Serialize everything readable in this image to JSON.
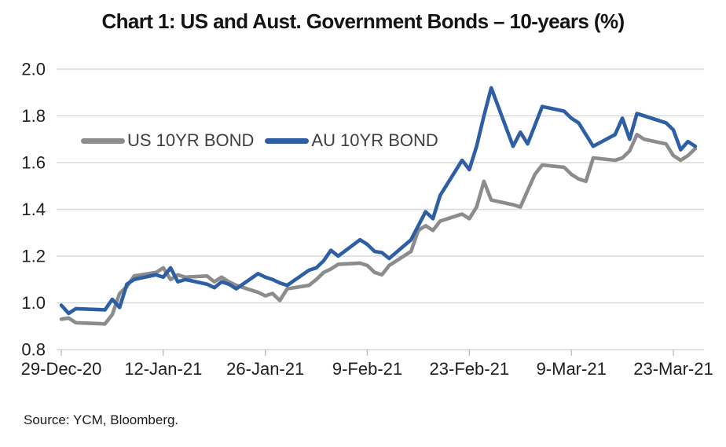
{
  "title": "Chart 1: US and Aust. Government Bonds – 10-years (%)",
  "source": "Source: YCM, Bloomberg.",
  "colors": {
    "us_line": "#8C8C8C",
    "au_line": "#2E5FA5",
    "grid": "#D9D9D9",
    "axis_tick": "#BFBFBF",
    "axis_label": "#1F1F1F",
    "legend_text": "#3F3F3F",
    "title_text": "#141414"
  },
  "legend": {
    "items": [
      {
        "label": "US 10YR BOND",
        "color": "#8C8C8C"
      },
      {
        "label": "AU 10YR BOND",
        "color": "#2E5FA5"
      }
    ]
  },
  "chart_data": {
    "type": "line",
    "title": "Chart 1: US and Aust. Government Bonds – 10-years (%)",
    "xlabel": "",
    "ylabel": "",
    "ylim": [
      0.8,
      2.0
    ],
    "yticks": [
      0.8,
      1.0,
      1.2,
      1.4,
      1.6,
      1.8,
      2.0
    ],
    "ytick_labels": [
      "0.8",
      "1.0",
      "1.2",
      "1.4",
      "1.6",
      "1.8",
      "2.0"
    ],
    "grid": true,
    "legend_position": "top-left-inside",
    "xticks": [
      {
        "date": "2020-12-29",
        "label": "29-Dec-20"
      },
      {
        "date": "2021-01-12",
        "label": "12-Jan-21"
      },
      {
        "date": "2021-01-26",
        "label": "26-Jan-21"
      },
      {
        "date": "2021-02-09",
        "label": "9-Feb-21"
      },
      {
        "date": "2021-02-23",
        "label": "23-Feb-21"
      },
      {
        "date": "2021-03-09",
        "label": "9-Mar-21"
      },
      {
        "date": "2021-03-23",
        "label": "23-Mar-21"
      }
    ],
    "x": [
      "2020-12-29",
      "2020-12-30",
      "2020-12-31",
      "2021-01-04",
      "2021-01-05",
      "2021-01-06",
      "2021-01-07",
      "2021-01-08",
      "2021-01-11",
      "2021-01-12",
      "2021-01-13",
      "2021-01-14",
      "2021-01-15",
      "2021-01-18",
      "2021-01-19",
      "2021-01-20",
      "2021-01-21",
      "2021-01-22",
      "2021-01-25",
      "2021-01-26",
      "2021-01-27",
      "2021-01-28",
      "2021-01-29",
      "2021-02-01",
      "2021-02-02",
      "2021-02-03",
      "2021-02-04",
      "2021-02-05",
      "2021-02-08",
      "2021-02-09",
      "2021-02-10",
      "2021-02-11",
      "2021-02-12",
      "2021-02-15",
      "2021-02-16",
      "2021-02-17",
      "2021-02-18",
      "2021-02-19",
      "2021-02-22",
      "2021-02-23",
      "2021-02-24",
      "2021-02-25",
      "2021-02-26",
      "2021-03-01",
      "2021-03-02",
      "2021-03-03",
      "2021-03-04",
      "2021-03-05",
      "2021-03-08",
      "2021-03-09",
      "2021-03-10",
      "2021-03-11",
      "2021-03-12",
      "2021-03-15",
      "2021-03-16",
      "2021-03-17",
      "2021-03-18",
      "2021-03-19",
      "2021-03-22",
      "2021-03-23",
      "2021-03-24",
      "2021-03-25",
      "2021-03-26"
    ],
    "series": [
      {
        "name": "US 10YR BOND",
        "color": "#8C8C8C",
        "values": [
          0.93,
          0.935,
          0.915,
          0.91,
          0.95,
          1.04,
          1.07,
          1.115,
          1.13,
          1.15,
          1.1,
          1.12,
          1.11,
          1.115,
          1.09,
          1.11,
          1.09,
          1.075,
          1.045,
          1.03,
          1.04,
          1.01,
          1.06,
          1.075,
          1.1,
          1.13,
          1.145,
          1.165,
          1.17,
          1.16,
          1.13,
          1.12,
          1.16,
          1.22,
          1.31,
          1.33,
          1.31,
          1.35,
          1.38,
          1.36,
          1.41,
          1.52,
          1.44,
          1.42,
          1.41,
          1.48,
          1.55,
          1.59,
          1.58,
          1.55,
          1.53,
          1.52,
          1.62,
          1.61,
          1.62,
          1.65,
          1.72,
          1.7,
          1.68,
          1.63,
          1.61,
          1.63,
          1.66
        ]
      },
      {
        "name": "AU 10YR BOND",
        "color": "#2E5FA5",
        "values": [
          0.99,
          0.955,
          0.975,
          0.97,
          1.015,
          0.98,
          1.08,
          1.1,
          1.12,
          1.11,
          1.15,
          1.09,
          1.1,
          1.08,
          1.065,
          1.09,
          1.08,
          1.06,
          1.125,
          1.11,
          1.1,
          1.085,
          1.075,
          1.14,
          1.15,
          1.18,
          1.225,
          1.2,
          1.27,
          1.25,
          1.22,
          1.215,
          1.19,
          1.27,
          1.33,
          1.39,
          1.36,
          1.46,
          1.61,
          1.57,
          1.67,
          1.8,
          1.92,
          1.67,
          1.73,
          1.68,
          1.76,
          1.84,
          1.82,
          1.79,
          1.77,
          1.72,
          1.67,
          1.72,
          1.79,
          1.7,
          1.81,
          1.8,
          1.77,
          1.74,
          1.655,
          1.69,
          1.67
        ]
      }
    ]
  }
}
